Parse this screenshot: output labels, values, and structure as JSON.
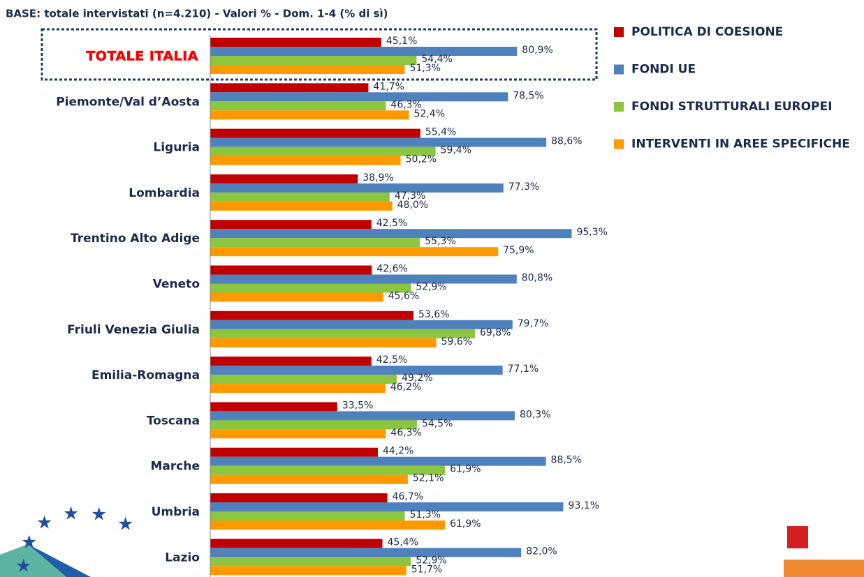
{
  "chart_data": {
    "type": "bar",
    "orientation": "horizontal",
    "title": "BASE: totale intervistati (n=4.210) - Valori %  - Dom. 1-4 (% di sì)",
    "categories": [
      "TOTALE ITALIA",
      "Piemonte/Val d’Aosta",
      "Liguria",
      "Lombardia",
      "Trentino Alto Adige",
      "Veneto",
      "Friuli Venezia Giulia",
      "Emilia-Romagna",
      "Toscana",
      "Marche",
      "Umbria",
      "Lazio"
    ],
    "xlim": [
      0,
      100
    ],
    "legend": "right",
    "series": [
      {
        "name": "POLITICA DI COESIONE",
        "color": "#c00000",
        "values": [
          45.1,
          41.7,
          55.4,
          38.9,
          42.5,
          42.6,
          53.6,
          42.5,
          33.5,
          44.2,
          46.7,
          45.4
        ],
        "value_labels": [
          "45,1%",
          "41,7%",
          "55,4%",
          "38,9%",
          "42,5%",
          "42,6%",
          "53,6%",
          "42,5%",
          "33,5%",
          "44,2%",
          "46,7%",
          "45,4%"
        ]
      },
      {
        "name": "FONDI UE",
        "color": "#4f81bd",
        "values": [
          80.9,
          78.5,
          88.6,
          77.3,
          95.3,
          80.8,
          79.7,
          77.1,
          80.3,
          88.5,
          93.1,
          82.0
        ],
        "value_labels": [
          "80,9%",
          "78,5%",
          "88,6%",
          "77,3%",
          "95,3%",
          "80,8%",
          "79,7%",
          "77,1%",
          "80,3%",
          "88,5%",
          "93,1%",
          "82,0%"
        ]
      },
      {
        "name": "FONDI STRUTTURALI EUROPEI",
        "color": "#8cc63f",
        "values": [
          54.4,
          46.3,
          59.4,
          47.3,
          55.3,
          52.9,
          69.8,
          49.2,
          54.5,
          61.9,
          51.3,
          52.9
        ],
        "value_labels": [
          "54,4%",
          "46,3%",
          "59,4%",
          "47,3%",
          "55,3%",
          "52,9%",
          "69,8%",
          "49,2%",
          "54,5%",
          "61,9%",
          "51,3%",
          "52,9%"
        ]
      },
      {
        "name": "INTERVENTI IN AREE SPECIFICHE",
        "color": "#ff9900",
        "values": [
          51.3,
          52.4,
          50.2,
          48.0,
          75.9,
          45.6,
          59.6,
          46.2,
          46.3,
          52.1,
          61.9,
          51.7
        ],
        "value_labels": [
          "51,3%",
          "52,4%",
          "50,2%",
          "48,0%",
          "75,9%",
          "45,6%",
          "59,6%",
          "46,2%",
          "46,3%",
          "52,1%",
          "61,9%",
          "51,7%"
        ]
      }
    ]
  }
}
